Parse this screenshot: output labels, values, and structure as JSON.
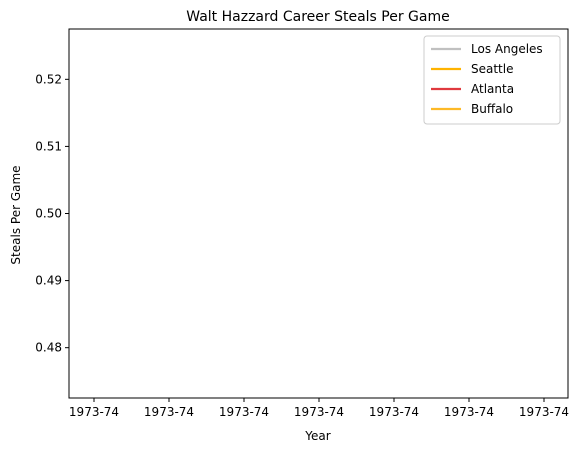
{
  "chart_data": {
    "type": "line",
    "title": "Walt Hazzard Career Steals Per Game",
    "xlabel": "Year",
    "ylabel": "Steals Per Game",
    "x_tick_labels": [
      "1973-74",
      "1973-74",
      "1973-74",
      "1973-74",
      "1973-74",
      "1973-74",
      "1973-74"
    ],
    "y_ticks": [
      0.48,
      0.49,
      0.5,
      0.51,
      0.52
    ],
    "y_tick_labels": [
      "0.48",
      "0.49",
      "0.50",
      "0.51",
      "0.52"
    ],
    "ylim": [
      0.4725,
      0.5275
    ],
    "grid": false,
    "legend_position": "top-right",
    "series": [
      {
        "name": "Los Angeles",
        "color": "#c0c0c0",
        "values": []
      },
      {
        "name": "Seattle",
        "color": "#ffb300",
        "values": []
      },
      {
        "name": "Atlanta",
        "color": "#e0393e",
        "values": []
      },
      {
        "name": "Buffalo",
        "color": "#fdb927",
        "values": []
      }
    ]
  }
}
